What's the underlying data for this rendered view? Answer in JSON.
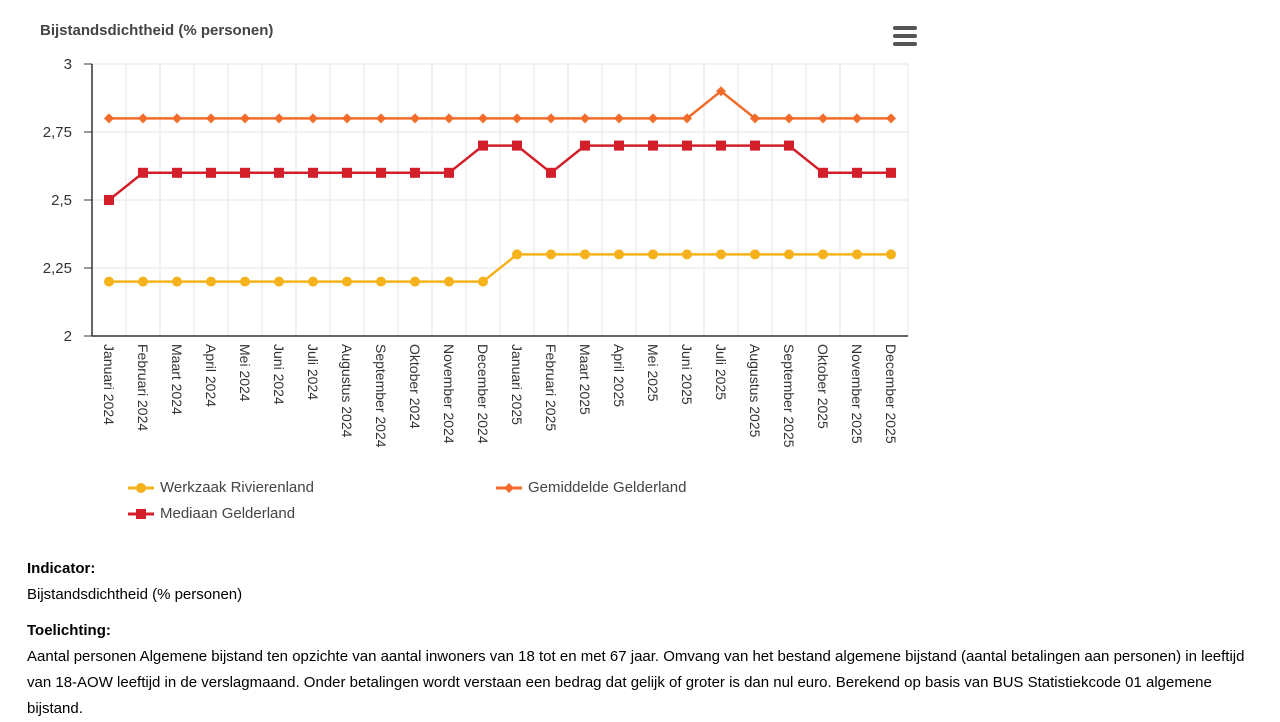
{
  "chart_data": {
    "type": "line",
    "title": "Bijstandsdichtheid (% personen)",
    "categories": [
      "Januari 2024",
      "Februari 2024",
      "Maart 2024",
      "April 2024",
      "Mei 2024",
      "Juni 2024",
      "Juli 2024",
      "Augustus 2024",
      "September 2024",
      "Oktober 2024",
      "November 2024",
      "December 2024",
      "Januari 2025",
      "Februari 2025",
      "Maart 2025",
      "April 2025",
      "Mei 2025",
      "Juni 2025",
      "Juli 2025",
      "Augustus 2025",
      "September 2025",
      "Oktober 2025",
      "November 2025",
      "December 2025"
    ],
    "ylim": [
      2,
      3
    ],
    "yticks": [
      2,
      2.25,
      2.5,
      2.75,
      3
    ],
    "ytick_labels": [
      "2",
      "2,25",
      "2,5",
      "2,75",
      "3"
    ],
    "grid": true,
    "series": [
      {
        "name": "Werkzaak Rivierenland",
        "color": "#f5b21a",
        "marker": "circle",
        "values": [
          2.2,
          2.2,
          2.2,
          2.2,
          2.2,
          2.2,
          2.2,
          2.2,
          2.2,
          2.2,
          2.2,
          2.2,
          2.3,
          2.3,
          2.3,
          2.3,
          2.3,
          2.3,
          2.3,
          2.3,
          2.3,
          2.3,
          2.3,
          2.3
        ]
      },
      {
        "name": "Gemiddelde Gelderland",
        "color": "#f26b2b",
        "marker": "diamond",
        "values": [
          2.8,
          2.8,
          2.8,
          2.8,
          2.8,
          2.8,
          2.8,
          2.8,
          2.8,
          2.8,
          2.8,
          2.8,
          2.8,
          2.8,
          2.8,
          2.8,
          2.8,
          2.8,
          2.9,
          2.8,
          2.8,
          2.8,
          2.8,
          2.8
        ]
      },
      {
        "name": "Mediaan Gelderland",
        "color": "#d21f2a",
        "marker": "square",
        "values": [
          2.5,
          2.6,
          2.6,
          2.6,
          2.6,
          2.6,
          2.6,
          2.6,
          2.6,
          2.6,
          2.6,
          2.7,
          2.7,
          2.6,
          2.7,
          2.7,
          2.7,
          2.7,
          2.7,
          2.7,
          2.7,
          2.6,
          2.6,
          2.6
        ]
      }
    ],
    "legend_position": "bottom"
  },
  "info": {
    "indicator_label": "Indicator:",
    "indicator_value": "Bijstandsdichtheid (% personen)",
    "toelichting_label": "Toelichting:",
    "toelichting_text": "Aantal personen Algemene bijstand ten opzichte van aantal inwoners van 18 tot en met 67 jaar. Omvang van het bestand algemene bijstand (aantal betalingen aan personen) in leeftijd van 18-AOW leeftijd in de verslagmaand. Onder betalingen wordt verstaan een bedrag dat gelijk of groter is dan nul euro. Berekend op basis van BUS Statistiekcode 01 algemene bijstand."
  },
  "icons": {
    "menu": "hamburger-menu-icon"
  }
}
